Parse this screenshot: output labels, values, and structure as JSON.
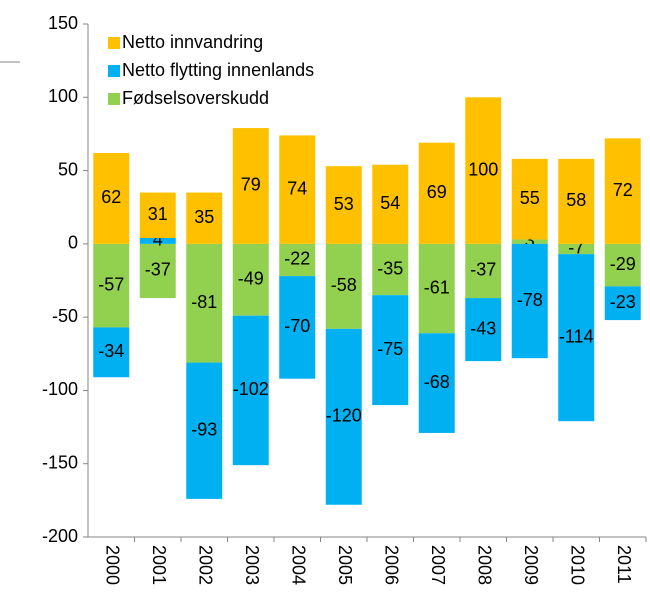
{
  "chart_data": {
    "type": "stacked_bar",
    "categories": [
      "2000",
      "2001",
      "2002",
      "2003",
      "2004",
      "2005",
      "2006",
      "2007",
      "2008",
      "2009",
      "2010",
      "2011"
    ],
    "series": [
      {
        "name": "Netto innvandring",
        "color": "#FFC000",
        "values": [
          62,
          31,
          35,
          79,
          74,
          53,
          54,
          69,
          100,
          55,
          58,
          72
        ]
      },
      {
        "name": "Netto flytting innenlands",
        "color": "#00B0F0",
        "values": [
          -34,
          4,
          -93,
          -102,
          -70,
          -120,
          -75,
          -68,
          -43,
          -78,
          -114,
          -23
        ]
      },
      {
        "name": "Fødselsoverskudd",
        "color": "#92D050",
        "values": [
          -57,
          -37,
          -81,
          -49,
          -22,
          -58,
          -35,
          -61,
          -37,
          3,
          -7,
          -29
        ]
      }
    ],
    "ylim": [
      -200,
      150
    ],
    "yticks": [
      -200,
      -150,
      -100,
      -50,
      0,
      50,
      100,
      150
    ],
    "grid": false
  }
}
